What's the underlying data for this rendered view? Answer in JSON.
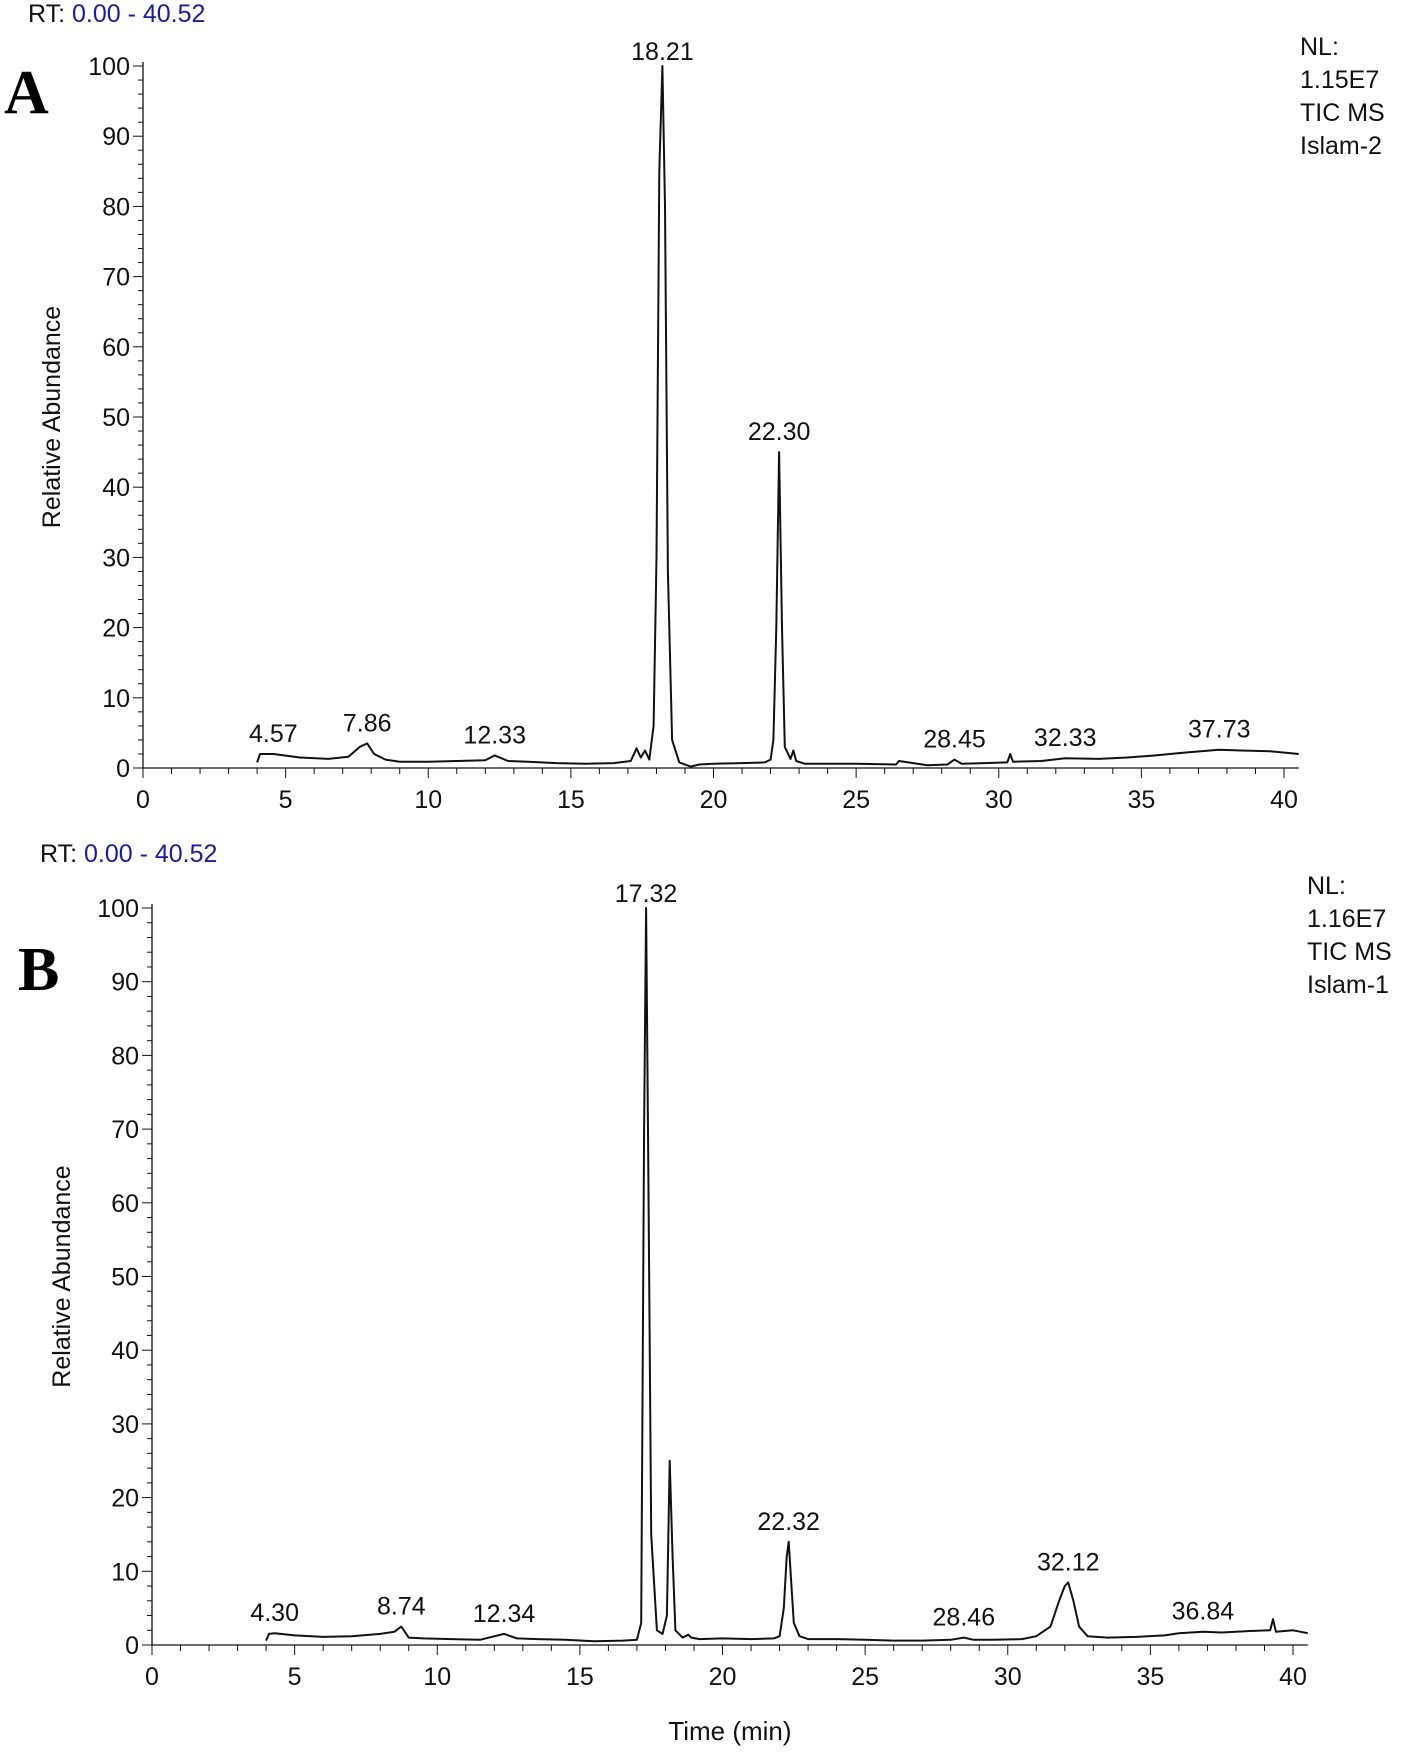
{
  "chart_data": [
    {
      "type": "line",
      "panel_letter": "A",
      "rt_prefix": "RT:",
      "rt_range_text": "0.00 - 40.52",
      "info_lines": [
        "NL:",
        "1.15E7",
        "TIC  MS",
        "Islam-2"
      ],
      "ylabel": "Relative Abundance",
      "xlabel": "",
      "xlim": [
        0,
        40.52
      ],
      "ylim": [
        0,
        100
      ],
      "xticks": [
        0,
        5,
        10,
        15,
        20,
        25,
        30,
        35,
        40
      ],
      "yticks": [
        0,
        10,
        20,
        30,
        40,
        50,
        60,
        70,
        80,
        90,
        100
      ],
      "series": [
        {
          "x": [
            4.0,
            4.1,
            4.57,
            5.5,
            6.5,
            7.2,
            7.6,
            7.86,
            8.1,
            8.5,
            9.0,
            10.0,
            11.0,
            12.0,
            12.33,
            12.8,
            13.5,
            14.5,
            15.5,
            16.5,
            17.1,
            17.3,
            17.45,
            17.6,
            17.75,
            17.9,
            18.0,
            18.1,
            18.21,
            18.3,
            18.4,
            18.55,
            18.8,
            19.2,
            19.5,
            20.0,
            21.0,
            21.8,
            22.0,
            22.1,
            22.2,
            22.3,
            22.4,
            22.5,
            22.7,
            22.8,
            22.9,
            23.2,
            24.0,
            25.0,
            26.4,
            26.5,
            27.5,
            28.2,
            28.45,
            28.7,
            29.5,
            30.3,
            30.4,
            30.5,
            31.5,
            32.33,
            33.5,
            34.5,
            35.5,
            36.5,
            37.73,
            38.5,
            39.5,
            40.52
          ],
          "y": [
            0.8,
            2.0,
            2.0,
            1.5,
            1.3,
            1.6,
            3.0,
            3.5,
            2.0,
            1.2,
            0.9,
            0.9,
            1.0,
            1.1,
            1.8,
            1.0,
            0.9,
            0.7,
            0.6,
            0.7,
            1.0,
            2.8,
            1.5,
            2.5,
            1.2,
            6.0,
            30.0,
            85.0,
            100.0,
            80.0,
            28.0,
            4.0,
            0.8,
            0.2,
            0.5,
            0.6,
            0.7,
            0.8,
            1.2,
            4.0,
            20.0,
            45.0,
            20.0,
            3.0,
            1.3,
            2.5,
            1.0,
            0.6,
            0.6,
            0.6,
            0.5,
            1.0,
            0.4,
            0.5,
            1.2,
            0.6,
            0.7,
            0.8,
            2.0,
            0.9,
            1.0,
            1.4,
            1.3,
            1.5,
            1.8,
            2.2,
            2.6,
            2.5,
            2.4,
            2.0
          ]
        }
      ],
      "peak_labels": [
        {
          "x": 4.57,
          "y": 2.0,
          "label": "4.57"
        },
        {
          "x": 7.86,
          "y": 3.5,
          "label": "7.86"
        },
        {
          "x": 12.33,
          "y": 1.8,
          "label": "12.33"
        },
        {
          "x": 18.21,
          "y": 100.0,
          "label": "18.21"
        },
        {
          "x": 22.3,
          "y": 45.0,
          "label": "22.30"
        },
        {
          "x": 28.45,
          "y": 1.2,
          "label": "28.45"
        },
        {
          "x": 32.33,
          "y": 1.4,
          "label": "32.33"
        },
        {
          "x": 37.73,
          "y": 2.6,
          "label": "37.73"
        }
      ]
    },
    {
      "type": "line",
      "panel_letter": "B",
      "rt_prefix": "RT:",
      "rt_range_text": "0.00 - 40.52",
      "info_lines": [
        "NL:",
        "1.16E7",
        "TIC  MS",
        "Islam-1"
      ],
      "ylabel": "Relative Abundance",
      "xlabel": "Time (min)",
      "xlim": [
        0,
        40.52
      ],
      "ylim": [
        0,
        100
      ],
      "xticks": [
        0,
        5,
        10,
        15,
        20,
        25,
        30,
        35,
        40
      ],
      "yticks": [
        0,
        10,
        20,
        30,
        40,
        50,
        60,
        70,
        80,
        90,
        100
      ],
      "series": [
        {
          "x": [
            4.0,
            4.1,
            4.3,
            5.0,
            6.0,
            7.0,
            8.0,
            8.5,
            8.74,
            9.0,
            9.5,
            10.5,
            11.5,
            12.34,
            12.8,
            13.5,
            14.5,
            15.5,
            16.5,
            17.0,
            17.15,
            17.25,
            17.32,
            17.4,
            17.5,
            17.7,
            17.9,
            18.05,
            18.15,
            18.25,
            18.35,
            18.6,
            18.8,
            18.9,
            19.2,
            20.0,
            21.0,
            21.8,
            22.0,
            22.15,
            22.25,
            22.32,
            22.4,
            22.5,
            22.7,
            23.0,
            24.0,
            25.0,
            26.0,
            27.0,
            28.0,
            28.46,
            28.8,
            29.5,
            30.5,
            31.0,
            31.5,
            31.8,
            32.0,
            32.12,
            32.3,
            32.5,
            32.8,
            33.5,
            34.5,
            35.5,
            36.0,
            36.84,
            37.5,
            38.5,
            39.2,
            39.3,
            39.4,
            40.0,
            40.52
          ],
          "y": [
            0.6,
            1.5,
            1.6,
            1.3,
            1.1,
            1.2,
            1.5,
            1.8,
            2.5,
            1.0,
            0.9,
            0.8,
            0.7,
            1.5,
            0.9,
            0.8,
            0.7,
            0.5,
            0.6,
            0.7,
            3.0,
            70.0,
            100.0,
            65.0,
            15.0,
            2.0,
            1.5,
            4.0,
            25.0,
            12.0,
            2.0,
            1.0,
            1.4,
            1.0,
            0.8,
            0.9,
            0.8,
            0.9,
            1.2,
            5.0,
            12.0,
            14.0,
            9.0,
            3.0,
            1.2,
            0.8,
            0.8,
            0.7,
            0.6,
            0.6,
            0.7,
            1.0,
            0.7,
            0.7,
            0.8,
            1.2,
            2.5,
            6.0,
            8.0,
            8.5,
            6.0,
            2.5,
            1.2,
            1.0,
            1.1,
            1.3,
            1.6,
            1.8,
            1.7,
            1.9,
            2.0,
            3.5,
            1.8,
            2.0,
            1.6
          ]
        }
      ],
      "peak_labels": [
        {
          "x": 4.3,
          "y": 1.6,
          "label": "4.30"
        },
        {
          "x": 8.74,
          "y": 2.5,
          "label": "8.74"
        },
        {
          "x": 12.34,
          "y": 1.5,
          "label": "12.34"
        },
        {
          "x": 17.32,
          "y": 100.0,
          "label": "17.32"
        },
        {
          "x": 22.32,
          "y": 14.0,
          "label": "22.32"
        },
        {
          "x": 28.46,
          "y": 1.0,
          "label": "28.46"
        },
        {
          "x": 32.12,
          "y": 8.5,
          "label": "32.12"
        },
        {
          "x": 36.84,
          "y": 1.8,
          "label": "36.84"
        }
      ]
    }
  ]
}
